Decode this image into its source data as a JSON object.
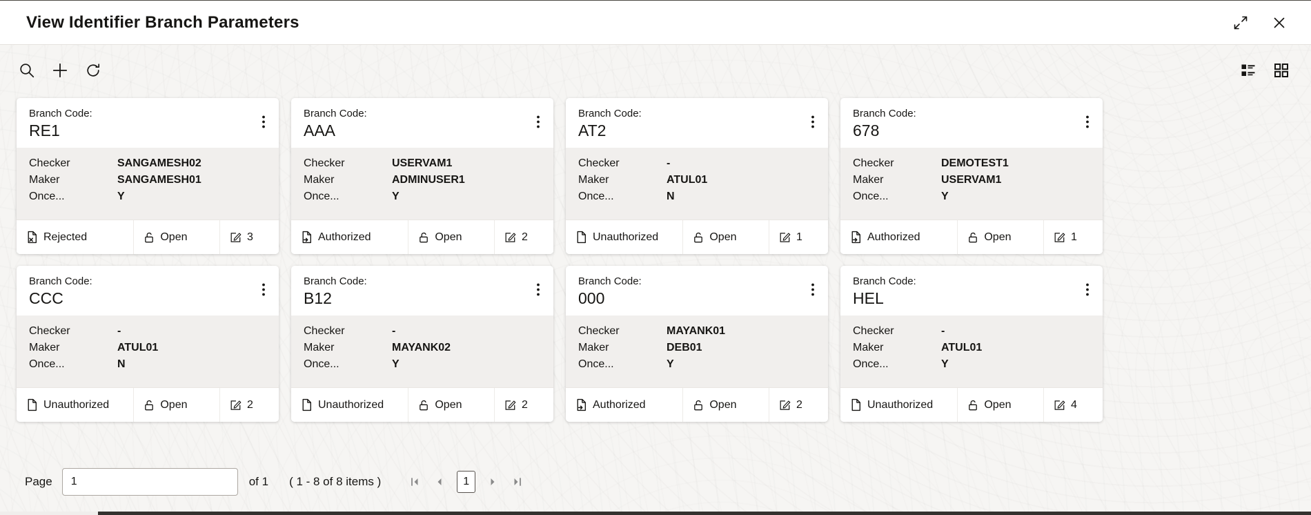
{
  "window": {
    "title": "View Identifier Branch Parameters",
    "icons": {
      "expand": "expand-icon",
      "close": "close-icon"
    }
  },
  "toolbar": {
    "left_icons": [
      "search-icon",
      "add-icon",
      "refresh-icon"
    ],
    "right_icons": [
      "list-view-icon",
      "grid-view-icon"
    ]
  },
  "card_labels": {
    "branch_code": "Branch Code:",
    "checker": "Checker",
    "maker": "Maker",
    "once": "Once..."
  },
  "cards": [
    {
      "code": "RE1",
      "checker": "SANGAMESH02",
      "maker": "SANGAMESH01",
      "once": "Y",
      "auth_status": "Rejected",
      "status_icon": "doc-rejected-icon",
      "record_status": "Open",
      "mod_count": "3"
    },
    {
      "code": "AAA",
      "checker": "USERVAM1",
      "maker": "ADMINUSER1",
      "once": "Y",
      "auth_status": "Authorized",
      "status_icon": "doc-authorized-icon",
      "record_status": "Open",
      "mod_count": "2"
    },
    {
      "code": "AT2",
      "checker": "-",
      "maker": "ATUL01",
      "once": "N",
      "auth_status": "Unauthorized",
      "status_icon": "doc-unauthorized-icon",
      "record_status": "Open",
      "mod_count": "1"
    },
    {
      "code": "678",
      "checker": "DEMOTEST1",
      "maker": "USERVAM1",
      "once": "Y",
      "auth_status": "Authorized",
      "status_icon": "doc-authorized-icon",
      "record_status": "Open",
      "mod_count": "1"
    },
    {
      "code": "CCC",
      "checker": "-",
      "maker": "ATUL01",
      "once": "N",
      "auth_status": "Unauthorized",
      "status_icon": "doc-unauthorized-icon",
      "record_status": "Open",
      "mod_count": "2"
    },
    {
      "code": "B12",
      "checker": "-",
      "maker": "MAYANK02",
      "once": "Y",
      "auth_status": "Unauthorized",
      "status_icon": "doc-unauthorized-icon",
      "record_status": "Open",
      "mod_count": "2"
    },
    {
      "code": "000",
      "checker": "MAYANK01",
      "maker": "DEB01",
      "once": "Y",
      "auth_status": "Authorized",
      "status_icon": "doc-authorized-icon",
      "record_status": "Open",
      "mod_count": "2"
    },
    {
      "code": "HEL",
      "checker": "-",
      "maker": "ATUL01",
      "once": "Y",
      "auth_status": "Unauthorized",
      "status_icon": "doc-unauthorized-icon",
      "record_status": "Open",
      "mod_count": "4"
    }
  ],
  "pagination": {
    "page_label": "Page",
    "page_input_value": "1",
    "of_text": "of 1",
    "items_text": "( 1 - 8 of 8 items )",
    "current_page": "1"
  },
  "colors": {
    "text": "#161513",
    "card_band": "#f1efed",
    "content_bg": "#f6f5f3"
  }
}
